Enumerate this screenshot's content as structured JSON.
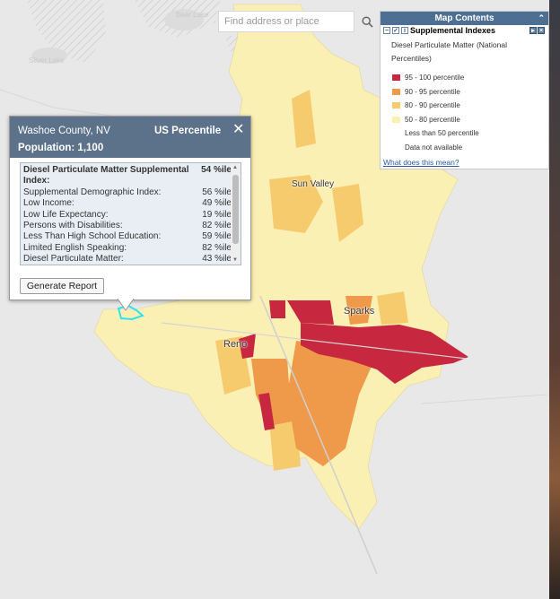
{
  "search": {
    "placeholder": "Find address or place",
    "icon": "search-icon"
  },
  "map_labels": {
    "sun_valley": "Sun Valley",
    "sparks": "Sparks",
    "reno": "Reno",
    "faint_1": "Bear Lake",
    "faint_2": "Silver Lake"
  },
  "legend": {
    "title": "Map Contents",
    "layer_name": "Supplemental Indexes",
    "subtitle": "Diesel Particulate Matter (National Percentiles)",
    "link": "What does this mean?",
    "items": [
      {
        "label": "95 - 100 percentile",
        "color": "#c8283f"
      },
      {
        "label": "90 - 95 percentile",
        "color": "#ee9a4a"
      },
      {
        "label": "80 - 90 percentile",
        "color": "#f5cb6e"
      },
      {
        "label": "50 - 80 percentile",
        "color": "#fbf0b4"
      },
      {
        "label": "Less than 50 percentile",
        "color": "#ffffff"
      },
      {
        "label": "Data not available",
        "color": "#ffffff"
      }
    ]
  },
  "popup": {
    "county": "Washoe County, NV",
    "column_header": "US Percentile",
    "population": "Population: 1,100",
    "rows": [
      {
        "label": "Diesel Particulate Matter Supplemental Index:",
        "value": "54 %ile"
      },
      {
        "label": "Supplemental Demographic Index:",
        "value": "56 %ile"
      },
      {
        "label": "Low Income:",
        "value": "49 %ile"
      },
      {
        "label": "Low Life Expectancy:",
        "value": "19 %ile"
      },
      {
        "label": "Persons with Disabilities:",
        "value": "82 %ile"
      },
      {
        "label": "Less Than High School Education:",
        "value": "59 %ile"
      },
      {
        "label": "Limited English Speaking:",
        "value": "82 %ile"
      },
      {
        "label": "Diesel Particulate Matter:",
        "value": "43 %ile"
      }
    ],
    "button": "Generate Report"
  }
}
